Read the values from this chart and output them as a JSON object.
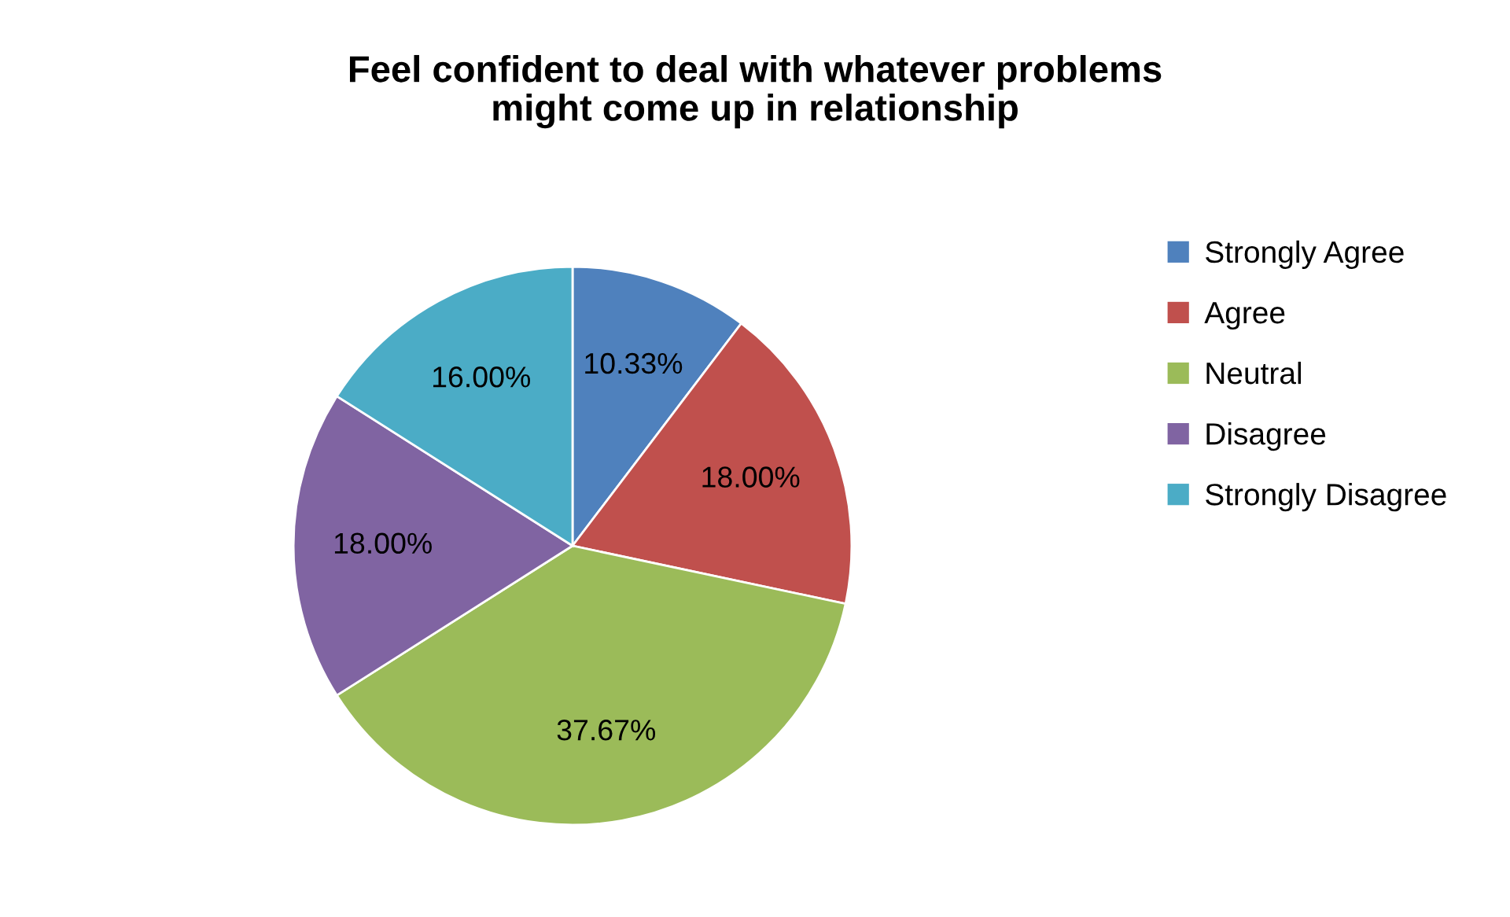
{
  "chart_data": {
    "type": "pie",
    "title": "Feel confident to deal with whatever problems\nmight come up in relationship",
    "categories": [
      "Strongly Agree",
      "Agree",
      "Neutral",
      "Disagree",
      "Strongly Disagree"
    ],
    "values": [
      10.33,
      18.0,
      37.67,
      18.0,
      16.0
    ],
    "colors": [
      "#4f81bd",
      "#c0504d",
      "#9bbb59",
      "#8064a2",
      "#4bacc6"
    ],
    "value_labels": [
      "10.33%",
      "18.00%",
      "37.67%",
      "18.00%",
      "16.00%"
    ],
    "legend": "right"
  }
}
